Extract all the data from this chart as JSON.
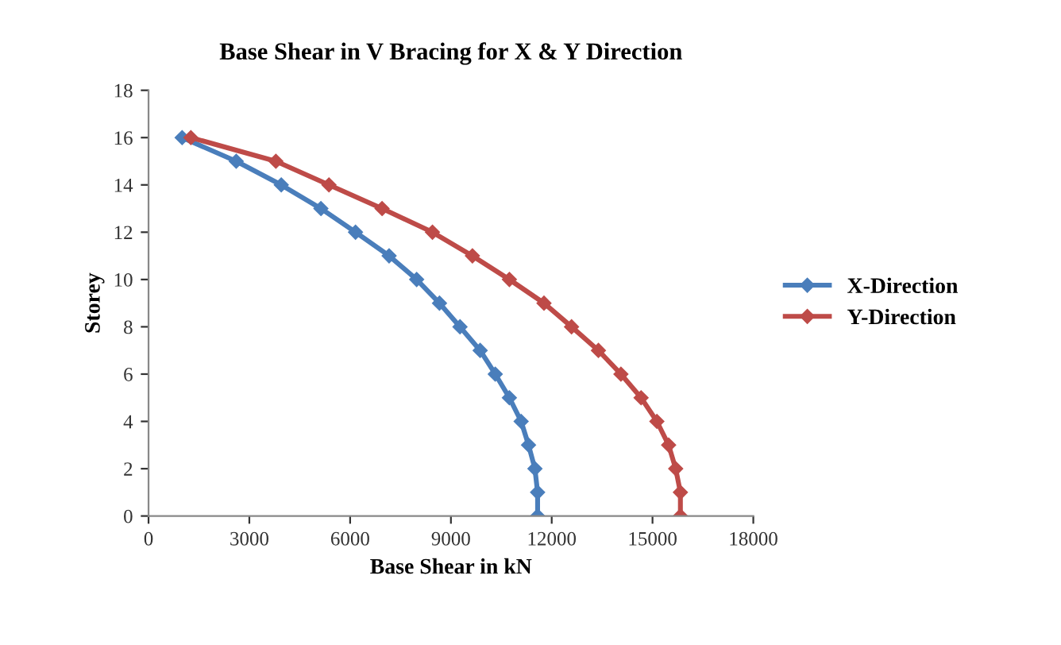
{
  "chart_data": {
    "type": "line",
    "title": "Base Shear in V Bracing for X & Y Direction",
    "xlabel": "Base Shear in kN",
    "ylabel": "Storey",
    "xlim": [
      0,
      18000
    ],
    "xticks": [
      0,
      3000,
      6000,
      9000,
      12000,
      15000,
      18000
    ],
    "ylim": [
      0,
      18
    ],
    "yticks": [
      0,
      2,
      4,
      6,
      8,
      10,
      12,
      14,
      16,
      18
    ],
    "grid": false,
    "legend": "right",
    "marker": "diamond",
    "series": [
      {
        "name": "X-Direction",
        "color": "#4a7ebb",
        "x": [
          11580,
          11580,
          11500,
          11310,
          11090,
          10740,
          10320,
          9870,
          9270,
          8660,
          7980,
          7160,
          6160,
          5130,
          3950,
          2610,
          1000
        ],
        "values": [
          0,
          1,
          2,
          3,
          4,
          5,
          6,
          7,
          8,
          9,
          10,
          11,
          12,
          13,
          14,
          15,
          16
        ]
      },
      {
        "name": "Y-Direction",
        "color": "#be4b48",
        "x": [
          15830,
          15830,
          15690,
          15480,
          15130,
          14660,
          14060,
          13390,
          12590,
          11770,
          10740,
          9640,
          8450,
          6950,
          5370,
          3790,
          1260
        ],
        "values": [
          0,
          1,
          2,
          3,
          4,
          5,
          6,
          7,
          8,
          9,
          10,
          11,
          12,
          13,
          14,
          15,
          16
        ]
      }
    ]
  }
}
